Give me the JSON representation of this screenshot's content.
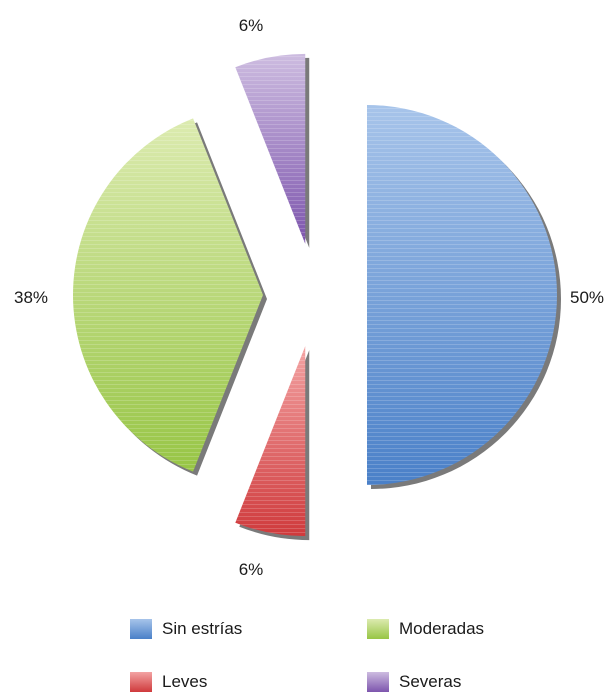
{
  "chart_data": {
    "type": "pie",
    "title": "",
    "categories": [
      "Sin estrías",
      "Leves",
      "Moderadas",
      "Severas"
    ],
    "values": [
      50,
      6,
      38,
      6
    ],
    "data_labels": [
      "50%",
      "6%",
      "38%",
      "6%"
    ],
    "colors": [
      "#6f9fd8",
      "#e0575a",
      "#b7d76a",
      "#9a78c2"
    ],
    "exploded": true,
    "legend_position": "bottom"
  }
}
